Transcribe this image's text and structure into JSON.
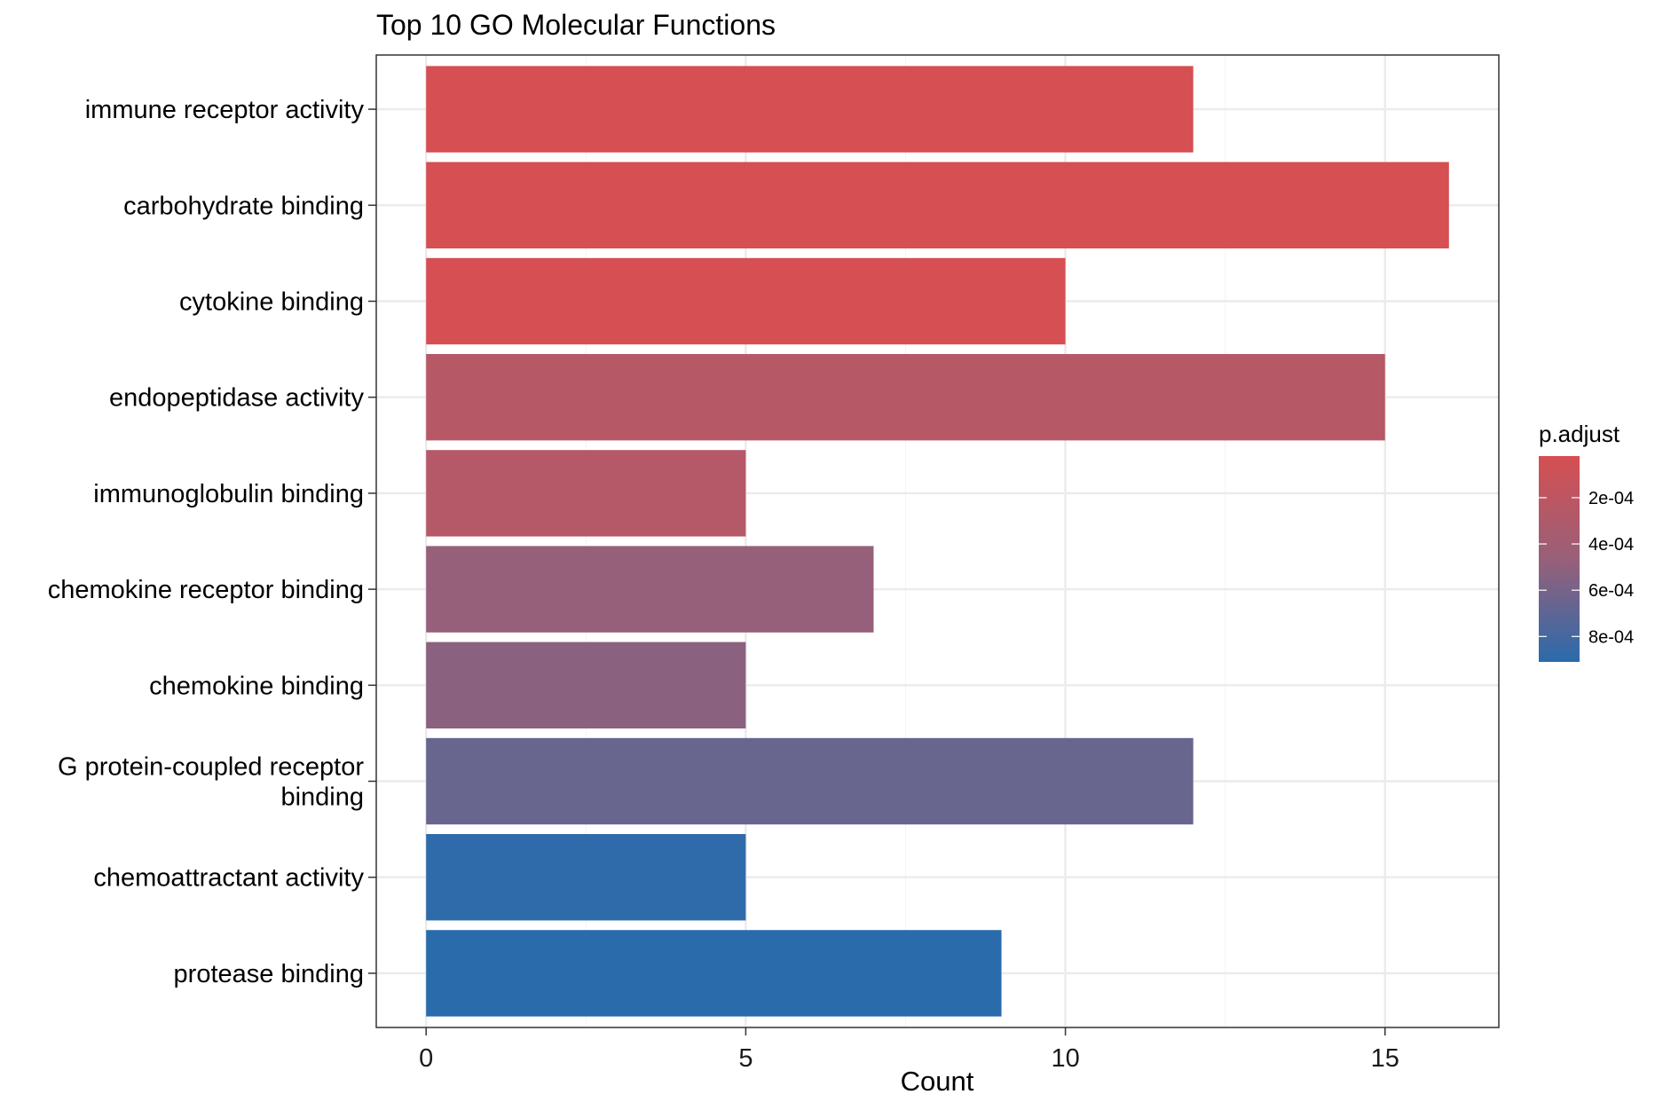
{
  "chart_data": {
    "type": "bar",
    "orientation": "horizontal",
    "title": "Top 10 GO Molecular Functions",
    "xlabel": "Count",
    "ylabel": "",
    "xlim": [
      -0.78,
      16.78
    ],
    "x_ticks": [
      0,
      5,
      10,
      15
    ],
    "grid": true,
    "legend_placement": "right",
    "categories": [
      "immune receptor activity",
      "carbohydrate binding",
      "cytokine binding",
      "endopeptidase activity",
      "immunoglobulin binding",
      "chemokine receptor binding",
      "chemokine binding",
      "G protein-coupled receptor binding",
      "chemoattractant activity",
      "protease binding"
    ],
    "category_label_lines": [
      [
        "immune receptor activity"
      ],
      [
        "carbohydrate binding"
      ],
      [
        "cytokine binding"
      ],
      [
        "endopeptidase activity"
      ],
      [
        "immunoglobulin binding"
      ],
      [
        "chemokine receptor binding"
      ],
      [
        "chemokine binding"
      ],
      [
        "G protein-coupled receptor",
        "binding"
      ],
      [
        "chemoattractant activity"
      ],
      [
        "protease binding"
      ]
    ],
    "values": [
      12,
      16,
      10,
      15,
      5,
      7,
      5,
      12,
      5,
      9
    ],
    "p_adjust": [
      2e-05,
      2e-05,
      3e-05,
      0.00025,
      0.00026,
      0.00047,
      0.00052,
      0.00066,
      0.00089,
      0.00091
    ],
    "color_scale": {
      "name": "p.adjust",
      "low_color": "#d64f52",
      "mid_color": "#986079",
      "high_color": "#2a6bac",
      "range": [
        2e-05,
        0.00091
      ],
      "ticks": [
        0.0002,
        0.0004,
        0.0006,
        0.0008
      ],
      "tick_labels": [
        "2e-04",
        "4e-04",
        "6e-04",
        "8e-04"
      ]
    }
  },
  "colors": {
    "panel_border": "#333333",
    "grid_major": "#ebebeb",
    "grid_minor": "#f5f5f5",
    "tick": "#333333"
  }
}
